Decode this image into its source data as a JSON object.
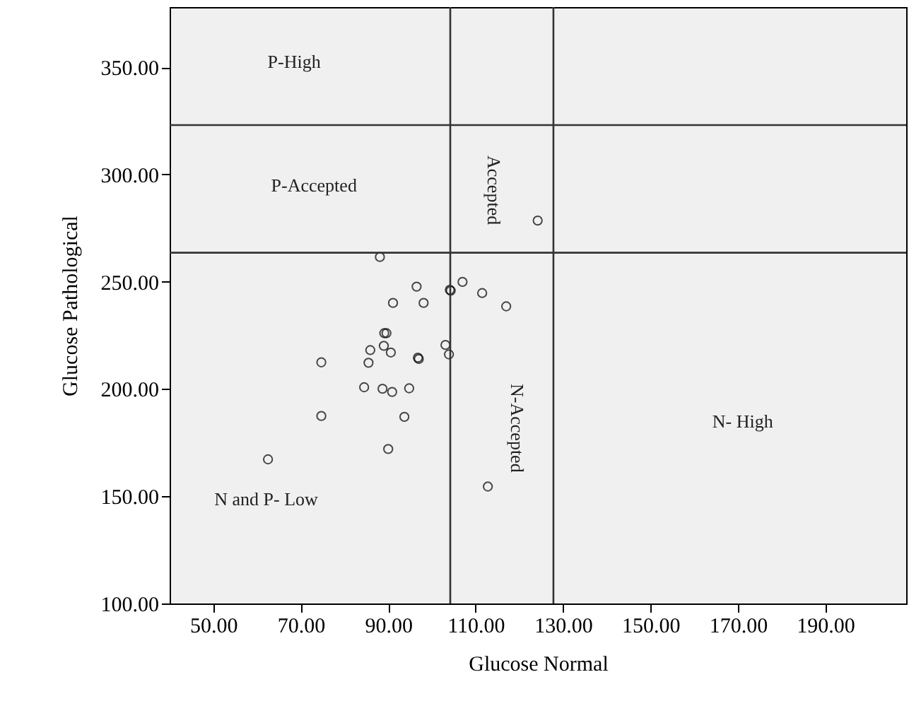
{
  "chart_data": {
    "type": "scatter",
    "xlabel": "Glucose Normal",
    "ylabel": "Glucose Pathological",
    "x": [
      88.1,
      96.5,
      91.1,
      98.1,
      104.1,
      104.3,
      107.0,
      111.5,
      117.0,
      89.1,
      89.6,
      85.9,
      89.0,
      90.6,
      85.5,
      74.7,
      96.8,
      97.0,
      103.1,
      103.9,
      84.5,
      88.7,
      90.9,
      94.8,
      74.7,
      93.7,
      90.0,
      62.5,
      112.8,
      124.2
    ],
    "series": [
      {
        "color": "#000000",
        "values": [
          261.5,
          247.7,
          240.1,
          240.1,
          246.2,
          245.8,
          249.9,
          244.7,
          238.5,
          226.0,
          226.0,
          218.1,
          220.1,
          217.0,
          212.2,
          212.4,
          214.6,
          214.0,
          220.5,
          216.1,
          200.8,
          200.1,
          198.6,
          200.3,
          187.4,
          187.0,
          172.0,
          167.2,
          154.5,
          278.5
        ]
      }
    ],
    "marker": "circle",
    "grid": false,
    "xlim": [
      40,
      208.5
    ],
    "ylim": [
      100,
      378
    ],
    "xticks": [
      {
        "value": 50,
        "label": "50.00"
      },
      {
        "value": 70,
        "label": "70.00"
      },
      {
        "value": 90,
        "label": "90.00"
      },
      {
        "value": 110,
        "label": "110.00"
      },
      {
        "value": 130,
        "label": "130.00"
      },
      {
        "value": 150,
        "label": "150.00"
      },
      {
        "value": 170,
        "label": "170.00"
      },
      {
        "value": 190,
        "label": "190.00"
      }
    ],
    "yticks": [
      {
        "value": 100,
        "label": "100.00"
      },
      {
        "value": 150,
        "label": "150.00"
      },
      {
        "value": 200,
        "label": "200.00"
      },
      {
        "value": 250,
        "label": "250.00"
      },
      {
        "value": 300,
        "label": "300.00"
      },
      {
        "value": 350,
        "label": "350.00"
      }
    ],
    "ref_lines": [
      {
        "axis": "x",
        "value": 104.2
      },
      {
        "axis": "x",
        "value": 127.8
      },
      {
        "axis": "y",
        "value": 263.5
      },
      {
        "axis": "y",
        "value": 323
      }
    ],
    "annotations": [
      "P-High",
      "P-Accepted",
      "Accepted",
      "N-Accepted",
      "N- High",
      "N and P- Low"
    ]
  }
}
